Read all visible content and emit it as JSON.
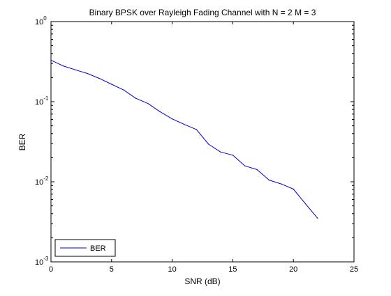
{
  "chart_data": {
    "type": "line",
    "title": "Binary BPSK over Rayleigh Fading Channel with N = 2 M = 3",
    "xlabel": "SNR (dB)",
    "ylabel": "BER",
    "xlim": [
      0,
      25
    ],
    "ylim": [
      0.001,
      1
    ],
    "yscale": "log",
    "grid": false,
    "legend_position": "bottom-left",
    "x_ticks": [
      "0",
      "5",
      "10",
      "15",
      "20",
      "25"
    ],
    "y_ticks": [
      {
        "base": "10",
        "exp": "0",
        "value": 1
      },
      {
        "base": "10",
        "exp": "-1",
        "value": 0.1
      },
      {
        "base": "10",
        "exp": "-2",
        "value": 0.01
      },
      {
        "base": "10",
        "exp": "-3",
        "value": 0.001
      }
    ],
    "series": [
      {
        "name": "BER",
        "color": "#0000cc",
        "x": [
          0,
          1,
          2,
          3,
          4,
          5,
          6,
          7,
          8,
          9,
          10,
          11,
          12,
          13,
          14,
          15,
          16,
          17,
          18,
          19,
          20,
          21,
          22
        ],
        "y": [
          0.33,
          0.28,
          0.25,
          0.225,
          0.195,
          0.165,
          0.14,
          0.11,
          0.095,
          0.075,
          0.061,
          0.052,
          0.045,
          0.0295,
          0.0235,
          0.0215,
          0.0158,
          0.0142,
          0.0105,
          0.0094,
          0.0081,
          0.0053,
          0.0035
        ]
      }
    ]
  }
}
